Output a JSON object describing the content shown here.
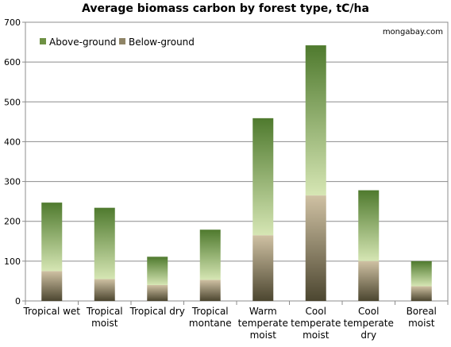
{
  "chart_data": {
    "type": "bar",
    "stacked": true,
    "title": "Average biomass carbon by forest type, tC/ha",
    "annotation": "mongabay.com",
    "xlabel": "",
    "ylabel": "",
    "ylim": [
      0,
      700
    ],
    "yticks": [
      0,
      100,
      200,
      300,
      400,
      500,
      600,
      700
    ],
    "grid": true,
    "legend": "top-left",
    "categories": [
      [
        "Tropical wet"
      ],
      [
        "Tropical",
        "moist"
      ],
      [
        "Tropical dry"
      ],
      [
        "Tropical",
        "montane"
      ],
      [
        "Warm",
        "temperate",
        "moist"
      ],
      [
        "Cool",
        "temperate",
        "moist"
      ],
      [
        "Cool",
        "temperate",
        "dry"
      ],
      [
        "Boreal",
        "moist"
      ]
    ],
    "series": [
      {
        "name": "Below-ground",
        "values": [
          75,
          55,
          40,
          53,
          165,
          265,
          100,
          37
        ]
      },
      {
        "name": "Above-ground",
        "values": [
          172,
          179,
          71,
          126,
          294,
          377,
          178,
          63
        ]
      }
    ],
    "colors": {
      "above_top": "#4f7a2e",
      "above_bottom": "#d6e6b4",
      "below_top": "#cfc1a3",
      "below_bottom": "#4c4630",
      "legend_above": "#6e9144",
      "legend_below": "#8f8466"
    }
  }
}
